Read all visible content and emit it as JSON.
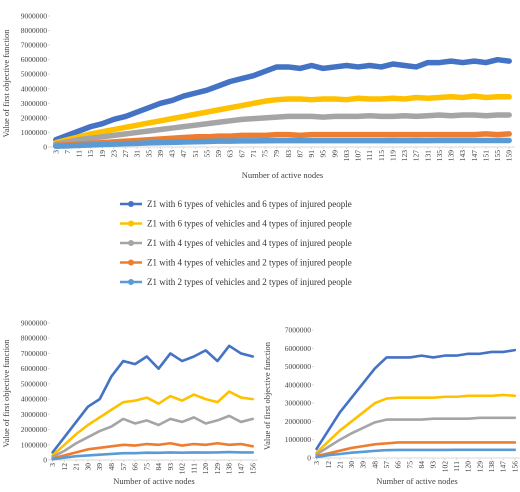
{
  "chart_data": [
    {
      "type": "line",
      "x_label": "Number of active nodes",
      "y_label": "Value of first objective function",
      "grid": false,
      "x": [
        3,
        7,
        11,
        15,
        19,
        23,
        27,
        31,
        35,
        39,
        43,
        47,
        51,
        55,
        59,
        63,
        67,
        71,
        75,
        79,
        83,
        87,
        91,
        95,
        99,
        103,
        107,
        111,
        115,
        119,
        123,
        127,
        131,
        135,
        139,
        143,
        147,
        151,
        155,
        159
      ],
      "xlim": [
        1,
        161
      ],
      "xticks": [
        3,
        7,
        11,
        15,
        19,
        23,
        27,
        31,
        35,
        39,
        43,
        47,
        51,
        55,
        59,
        63,
        67,
        71,
        75,
        79,
        83,
        87,
        91,
        95,
        99,
        103,
        107,
        111,
        115,
        119,
        123,
        127,
        131,
        135,
        139,
        143,
        147,
        151,
        155,
        159
      ],
      "ylim": [
        0,
        9000000
      ],
      "yticks": [
        0,
        1000000,
        2000000,
        3000000,
        4000000,
        5000000,
        6000000,
        7000000,
        8000000,
        9000000
      ],
      "series": [
        {
          "name": "Z1 with 6 types of vehicles and 6 types of injured people",
          "color": "#4472c4",
          "values": [
            500000,
            800000,
            1100000,
            1400000,
            1600000,
            1900000,
            2100000,
            2400000,
            2700000,
            3000000,
            3200000,
            3500000,
            3700000,
            3900000,
            4200000,
            4500000,
            4700000,
            4900000,
            5200000,
            5500000,
            5500000,
            5400000,
            5600000,
            5400000,
            5500000,
            5600000,
            5500000,
            5600000,
            5500000,
            5700000,
            5600000,
            5500000,
            5800000,
            5800000,
            5900000,
            5800000,
            5900000,
            5800000,
            6000000,
            5900000
          ]
        },
        {
          "name": "Z1 with 6 types of vehicles and 4 types of injured people",
          "color": "#ffc000",
          "values": [
            300000,
            500000,
            700000,
            900000,
            1050000,
            1200000,
            1350000,
            1500000,
            1650000,
            1800000,
            1950000,
            2100000,
            2250000,
            2400000,
            2550000,
            2700000,
            2850000,
            3000000,
            3150000,
            3250000,
            3300000,
            3300000,
            3250000,
            3300000,
            3300000,
            3250000,
            3350000,
            3300000,
            3300000,
            3350000,
            3300000,
            3400000,
            3350000,
            3400000,
            3450000,
            3400000,
            3500000,
            3400000,
            3450000,
            3450000
          ]
        },
        {
          "name": "Z1 with 4 types of vehicles and 4 types of injured people",
          "color": "#a5a5a5",
          "values": [
            200000,
            350000,
            500000,
            600000,
            700000,
            800000,
            900000,
            1000000,
            1100000,
            1200000,
            1300000,
            1400000,
            1500000,
            1600000,
            1700000,
            1800000,
            1900000,
            1950000,
            2000000,
            2050000,
            2100000,
            2100000,
            2100000,
            2050000,
            2100000,
            2100000,
            2100000,
            2150000,
            2100000,
            2100000,
            2150000,
            2100000,
            2150000,
            2200000,
            2150000,
            2200000,
            2200000,
            2150000,
            2200000,
            2200000
          ]
        },
        {
          "name": "Z1 with 4 types of vehicles and 2 types of injured people",
          "color": "#ed7d31",
          "values": [
            100000,
            150000,
            200000,
            250000,
            300000,
            350000,
            400000,
            450000,
            500000,
            550000,
            600000,
            650000,
            700000,
            700000,
            750000,
            750000,
            800000,
            800000,
            800000,
            850000,
            850000,
            800000,
            850000,
            850000,
            850000,
            850000,
            850000,
            850000,
            850000,
            850000,
            850000,
            850000,
            850000,
            850000,
            850000,
            850000,
            850000,
            900000,
            850000,
            900000
          ]
        },
        {
          "name": "Z1 with 2 types of vehicles and 2 types of injured people",
          "color": "#5b9bd5",
          "values": [
            50000,
            80000,
            110000,
            140000,
            170000,
            200000,
            230000,
            250000,
            280000,
            300000,
            320000,
            340000,
            360000,
            380000,
            400000,
            400000,
            420000,
            420000,
            430000,
            440000,
            440000,
            440000,
            440000,
            440000,
            440000,
            440000,
            440000,
            440000,
            440000,
            450000,
            440000,
            450000,
            440000,
            450000,
            450000,
            450000,
            450000,
            450000,
            450000,
            450000
          ]
        }
      ]
    },
    {
      "type": "line",
      "x_label": "Number of active nodes",
      "y_label": "Value of first objective function",
      "grid": false,
      "x": [
        3,
        12,
        21,
        30,
        39,
        48,
        57,
        66,
        75,
        84,
        93,
        102,
        111,
        120,
        129,
        138,
        147,
        156
      ],
      "xlim": [
        1,
        160
      ],
      "xticks": [
        3,
        12,
        21,
        30,
        39,
        48,
        57,
        66,
        75,
        84,
        93,
        102,
        111,
        120,
        129,
        138,
        147,
        156
      ],
      "ylim": [
        0,
        9000000
      ],
      "yticks": [
        0,
        1000000,
        2000000,
        3000000,
        4000000,
        5000000,
        6000000,
        7000000,
        8000000,
        9000000
      ],
      "series": [
        {
          "color": "#4472c4",
          "values": [
            500000,
            1500000,
            2500000,
            3500000,
            4000000,
            5500000,
            6500000,
            6300000,
            6800000,
            6000000,
            7000000,
            6500000,
            6800000,
            7200000,
            6500000,
            7500000,
            7000000,
            6800000
          ]
        },
        {
          "color": "#ffc000",
          "values": [
            300000,
            1000000,
            1700000,
            2300000,
            2800000,
            3300000,
            3800000,
            3900000,
            4100000,
            3700000,
            4200000,
            3900000,
            4300000,
            4000000,
            3800000,
            4500000,
            4100000,
            4000000
          ]
        },
        {
          "color": "#a5a5a5",
          "values": [
            200000,
            600000,
            1100000,
            1500000,
            1900000,
            2200000,
            2700000,
            2400000,
            2600000,
            2300000,
            2700000,
            2500000,
            2800000,
            2400000,
            2600000,
            2900000,
            2500000,
            2700000
          ]
        },
        {
          "color": "#ed7d31",
          "values": [
            100000,
            300000,
            500000,
            700000,
            800000,
            900000,
            1000000,
            950000,
            1050000,
            1000000,
            1100000,
            950000,
            1050000,
            1000000,
            1100000,
            1000000,
            1050000,
            900000
          ]
        },
        {
          "color": "#5b9bd5",
          "values": [
            50000,
            150000,
            250000,
            300000,
            350000,
            400000,
            450000,
            450000,
            480000,
            470000,
            500000,
            480000,
            500000,
            490000,
            500000,
            520000,
            500000,
            500000
          ]
        }
      ]
    },
    {
      "type": "line",
      "x_label": "Number of active nodes",
      "y_label": "Value of first objective function",
      "grid": false,
      "x": [
        3,
        12,
        21,
        30,
        39,
        48,
        57,
        66,
        75,
        84,
        93,
        102,
        111,
        120,
        129,
        138,
        147,
        156
      ],
      "xlim": [
        1,
        160
      ],
      "xticks": [
        3,
        12,
        21,
        30,
        39,
        48,
        57,
        66,
        75,
        84,
        93,
        102,
        111,
        120,
        129,
        138,
        147,
        156
      ],
      "ylim": [
        0,
        7000000
      ],
      "yticks": [
        0,
        1000000,
        2000000,
        3000000,
        4000000,
        5000000,
        6000000,
        7000000
      ],
      "series": [
        {
          "color": "#4472c4",
          "values": [
            500000,
            1500000,
            2500000,
            3300000,
            4100000,
            4900000,
            5500000,
            5500000,
            5500000,
            5600000,
            5500000,
            5600000,
            5600000,
            5700000,
            5700000,
            5800000,
            5800000,
            5900000
          ]
        },
        {
          "color": "#ffc000",
          "values": [
            300000,
            900000,
            1500000,
            2000000,
            2500000,
            3000000,
            3250000,
            3300000,
            3300000,
            3300000,
            3300000,
            3350000,
            3350000,
            3400000,
            3400000,
            3400000,
            3450000,
            3400000
          ]
        },
        {
          "color": "#a5a5a5",
          "values": [
            200000,
            600000,
            1000000,
            1350000,
            1650000,
            1950000,
            2100000,
            2100000,
            2100000,
            2100000,
            2150000,
            2150000,
            2150000,
            2150000,
            2200000,
            2200000,
            2200000,
            2200000
          ]
        },
        {
          "color": "#ed7d31",
          "values": [
            100000,
            250000,
            400000,
            550000,
            650000,
            750000,
            800000,
            850000,
            850000,
            850000,
            850000,
            850000,
            850000,
            850000,
            850000,
            850000,
            850000,
            850000
          ]
        },
        {
          "color": "#5b9bd5",
          "values": [
            50000,
            150000,
            220000,
            290000,
            340000,
            390000,
            430000,
            440000,
            440000,
            440000,
            440000,
            440000,
            450000,
            450000,
            450000,
            450000,
            450000,
            450000
          ]
        }
      ]
    }
  ]
}
